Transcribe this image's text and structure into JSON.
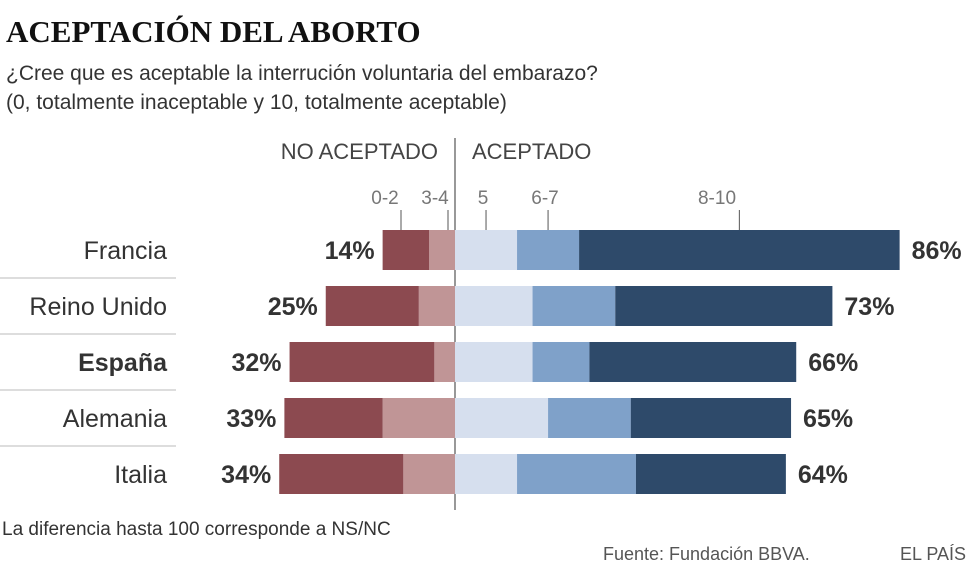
{
  "chart_data": {
    "type": "bar",
    "stacked": true,
    "diverging": true,
    "title": "ACEPTACIÓN DEL ABORTO",
    "subtitle": [
      "¿Cree que es aceptable la interrución voluntaria del embarazo?",
      "(0, totalmente inaceptable y 10, totalmente aceptable)"
    ],
    "left_header": "NO ACEPTADO",
    "right_header": "ACEPTADO",
    "categories": [
      "Francia",
      "Reino Unido",
      "España",
      "Alemania",
      "Italia"
    ],
    "highlight": "España",
    "left_totals": [
      "14%",
      "25%",
      "32%",
      "33%",
      "34%"
    ],
    "right_totals": [
      "86%",
      "73%",
      "66%",
      "65%",
      "64%"
    ],
    "series": [
      {
        "name": "0-2",
        "side": "left",
        "color": "#8c4a50",
        "values": [
          9,
          18,
          28,
          19,
          24
        ]
      },
      {
        "name": "3-4",
        "side": "left",
        "color": "#c09596",
        "values": [
          5,
          7,
          4,
          14,
          10
        ]
      },
      {
        "name": "5",
        "side": "right",
        "color": "#d6dfee",
        "values": [
          12,
          15,
          15,
          18,
          12
        ]
      },
      {
        "name": "6-7",
        "side": "right",
        "color": "#7fa1c9",
        "values": [
          12,
          16,
          11,
          16,
          23
        ]
      },
      {
        "name": "8-10",
        "side": "right",
        "color": "#2e4a6a",
        "values": [
          62,
          42,
          40,
          31,
          29
        ]
      }
    ],
    "note": "La diferencia hasta 100 corresponde a NS/NC",
    "source": "Fuente: Fundación BBVA.",
    "credit": "EL PAÍS"
  }
}
